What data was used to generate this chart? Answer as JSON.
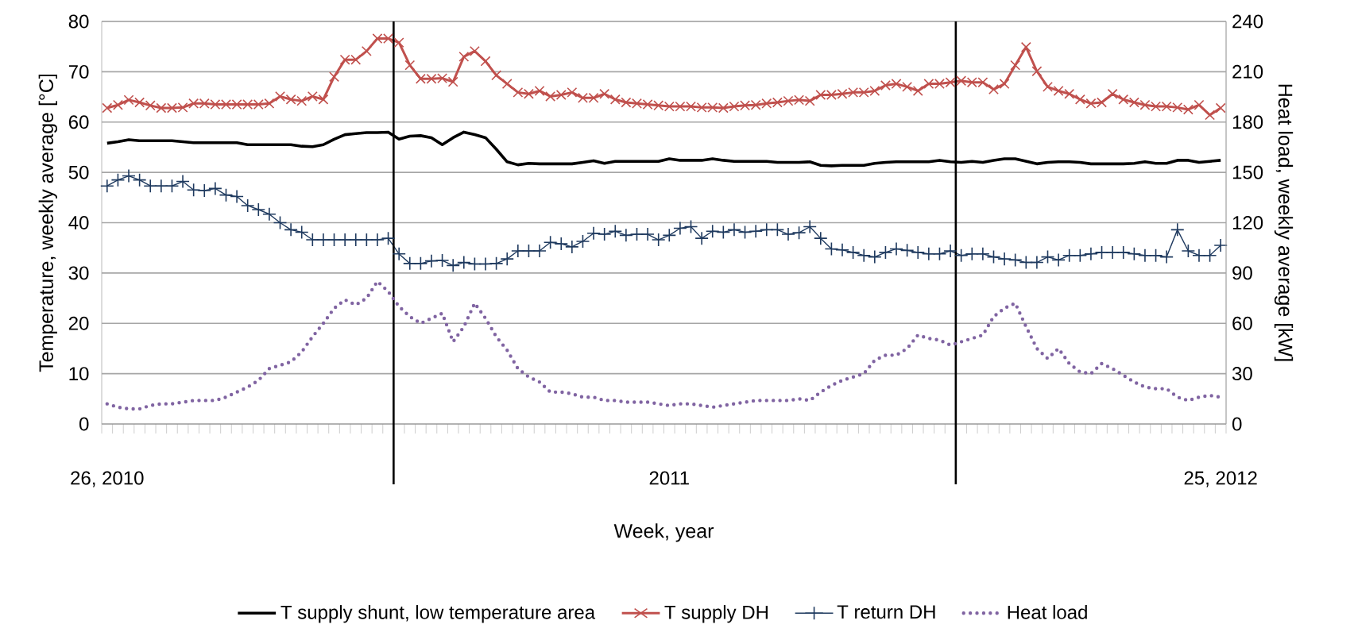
{
  "chart_data": {
    "type": "line",
    "xlabel": "Week, year",
    "ylabel": "Temperature, weekly average [°C]",
    "y2label": "Heat load, weekly average [kW]",
    "categories": [
      "26, 2010",
      null,
      null,
      null,
      null,
      null,
      null,
      null,
      null,
      null,
      null,
      null,
      null,
      null,
      null,
      null,
      null,
      null,
      null,
      null,
      null,
      null,
      null,
      null,
      null,
      null,
      null,
      null,
      null,
      null,
      null,
      null,
      null,
      null,
      null,
      null,
      null,
      null,
      null,
      null,
      null,
      null,
      null,
      null,
      null,
      null,
      null,
      null,
      null,
      null,
      null,
      null,
      "2011",
      null,
      null,
      null,
      null,
      null,
      null,
      null,
      null,
      null,
      null,
      null,
      null,
      null,
      null,
      null,
      null,
      null,
      null,
      null,
      null,
      null,
      null,
      null,
      null,
      null,
      null,
      null,
      null,
      null,
      null,
      null,
      null,
      null,
      null,
      null,
      null,
      null,
      null,
      null,
      null,
      null,
      null,
      null,
      null,
      null,
      null,
      null,
      null,
      null,
      null,
      "25, 2012"
    ],
    "ylim": [
      0,
      80
    ],
    "yticks": [
      0,
      10,
      20,
      30,
      40,
      50,
      60,
      70,
      80
    ],
    "y2lim": [
      0,
      240
    ],
    "y2ticks": [
      0,
      30,
      60,
      90,
      120,
      150,
      180,
      210,
      240
    ],
    "grid": "y",
    "legend": "bottom",
    "series": [
      {
        "name": "T supply shunt, low temperature area",
        "color": "#000000",
        "marker": "none",
        "line_style": "solid",
        "values": [
          55.8,
          56.1,
          56.5,
          56.3,
          56.3,
          56.3,
          56.3,
          56.1,
          55.9,
          55.9,
          55.9,
          55.9,
          55.9,
          55.5,
          55.5,
          55.5,
          55.5,
          55.5,
          55.2,
          55.1,
          55.5,
          56.6,
          57.5,
          57.7,
          57.9,
          57.9,
          58,
          56.6,
          57.2,
          57.3,
          56.9,
          55.5,
          56.9,
          58,
          57.5,
          56.9,
          54.6,
          52.1,
          51.5,
          51.8,
          51.7,
          51.7,
          51.7,
          51.7,
          52,
          52.3,
          51.8,
          52.2,
          52.2,
          52.2,
          52.2,
          52.2,
          52.7,
          52.4,
          52.4,
          52.4,
          52.7,
          52.4,
          52.2,
          52.2,
          52.2,
          52.2,
          52,
          52,
          52,
          52.1,
          51.4,
          51.3,
          51.4,
          51.4,
          51.4,
          51.8,
          52,
          52.1,
          52.1,
          52.1,
          52.1,
          52.4,
          52.1,
          52,
          52.2,
          52,
          52.4,
          52.7,
          52.7,
          52.2,
          51.7,
          52,
          52.1,
          52.1,
          52,
          51.7,
          51.7,
          51.7,
          51.7,
          51.8,
          52.1,
          51.8,
          51.8,
          52.4,
          52.4,
          52,
          52.2,
          52.4
        ]
      },
      {
        "name": "T supply DH",
        "color": "#c0504d",
        "marker": "cross",
        "line_style": "solid",
        "values": [
          62.8,
          63.4,
          64.4,
          63.9,
          63.3,
          62.8,
          62.8,
          62.9,
          63.7,
          63.7,
          63.5,
          63.5,
          63.5,
          63.5,
          63.5,
          63.7,
          65.1,
          64.5,
          64.2,
          65.1,
          64.5,
          69,
          72.4,
          72.4,
          74.1,
          76.6,
          76.6,
          75.8,
          71.3,
          68.6,
          68.6,
          68.7,
          68,
          73,
          74.1,
          72.1,
          69.3,
          67.6,
          65.9,
          65.6,
          66.2,
          65.1,
          65.4,
          65.9,
          64.8,
          64.8,
          65.6,
          64.5,
          63.9,
          63.7,
          63.5,
          63.3,
          63.1,
          63.1,
          63.1,
          62.9,
          62.9,
          62.8,
          63.1,
          63.3,
          63.4,
          63.7,
          63.9,
          64.2,
          64.4,
          64.2,
          65.4,
          65.4,
          65.6,
          65.9,
          65.9,
          66.2,
          67.3,
          67.6,
          67,
          66.2,
          67.6,
          67.6,
          67.9,
          68.2,
          67.9,
          67.9,
          66.5,
          67.6,
          71.3,
          74.9,
          70.1,
          67,
          66.2,
          65.6,
          64.5,
          63.7,
          63.9,
          65.6,
          64.5,
          63.9,
          63.4,
          63.1,
          63.1,
          62.9,
          62.5,
          63.4,
          61.4,
          62.8
        ]
      },
      {
        "name": "T return DH",
        "color": "#1f3a5f",
        "marker": "plus",
        "line_style": "solid",
        "values": [
          47.3,
          48.5,
          49.3,
          48.5,
          47.3,
          47.3,
          47.3,
          48.2,
          46.5,
          46.4,
          46.8,
          45.5,
          45.2,
          43.4,
          42.6,
          41.7,
          40,
          38.6,
          38.1,
          36.6,
          36.6,
          36.6,
          36.6,
          36.6,
          36.6,
          36.6,
          36.9,
          33.8,
          31.9,
          31.9,
          32.4,
          32.5,
          31.5,
          32.1,
          31.8,
          31.8,
          31.9,
          32.8,
          34.4,
          34.4,
          34.4,
          36.1,
          35.8,
          35.2,
          36.3,
          37.9,
          37.7,
          38.3,
          37.5,
          37.7,
          37.7,
          36.6,
          37.5,
          38.9,
          39.2,
          36.9,
          38.3,
          38.1,
          38.6,
          38.1,
          38.3,
          38.6,
          38.6,
          37.7,
          38,
          39.2,
          36.9,
          34.8,
          34.6,
          34.1,
          33.5,
          33.2,
          34.1,
          34.8,
          34.5,
          34.1,
          33.8,
          33.8,
          34.4,
          33.5,
          33.8,
          33.8,
          33.2,
          32.8,
          32.6,
          32.1,
          32.1,
          33.2,
          32.6,
          33.5,
          33.5,
          33.8,
          34.1,
          34.1,
          34.1,
          33.8,
          33.5,
          33.5,
          33.2,
          38.6,
          34.4,
          33.5,
          33.5,
          35.5
        ]
      },
      {
        "name": "Heat load",
        "color": "#8064a2",
        "marker": "none",
        "line_style": "dotted",
        "axis": "y2",
        "values": [
          12,
          10,
          9,
          9,
          11,
          12,
          12,
          13,
          14,
          14,
          14,
          16,
          19,
          22,
          26,
          33,
          35,
          37,
          43,
          52,
          60,
          69,
          74,
          71,
          75,
          85,
          79,
          70,
          64,
          60,
          63,
          66,
          49,
          58,
          72,
          63,
          52,
          44,
          33,
          28,
          25,
          19,
          19,
          18,
          16,
          16,
          14,
          14,
          13,
          13,
          13,
          12,
          11,
          12,
          12,
          11,
          10,
          11,
          12,
          13,
          14,
          14,
          14,
          14,
          15,
          14,
          19,
          23,
          26,
          28,
          30,
          38,
          41,
          41,
          45,
          53,
          51,
          50,
          47,
          49,
          51,
          53,
          64,
          69,
          72,
          58,
          45,
          39,
          45,
          36,
          31,
          30,
          36,
          33,
          29,
          25,
          22,
          21,
          21,
          16,
          14,
          16,
          17,
          16
        ]
      }
    ]
  }
}
